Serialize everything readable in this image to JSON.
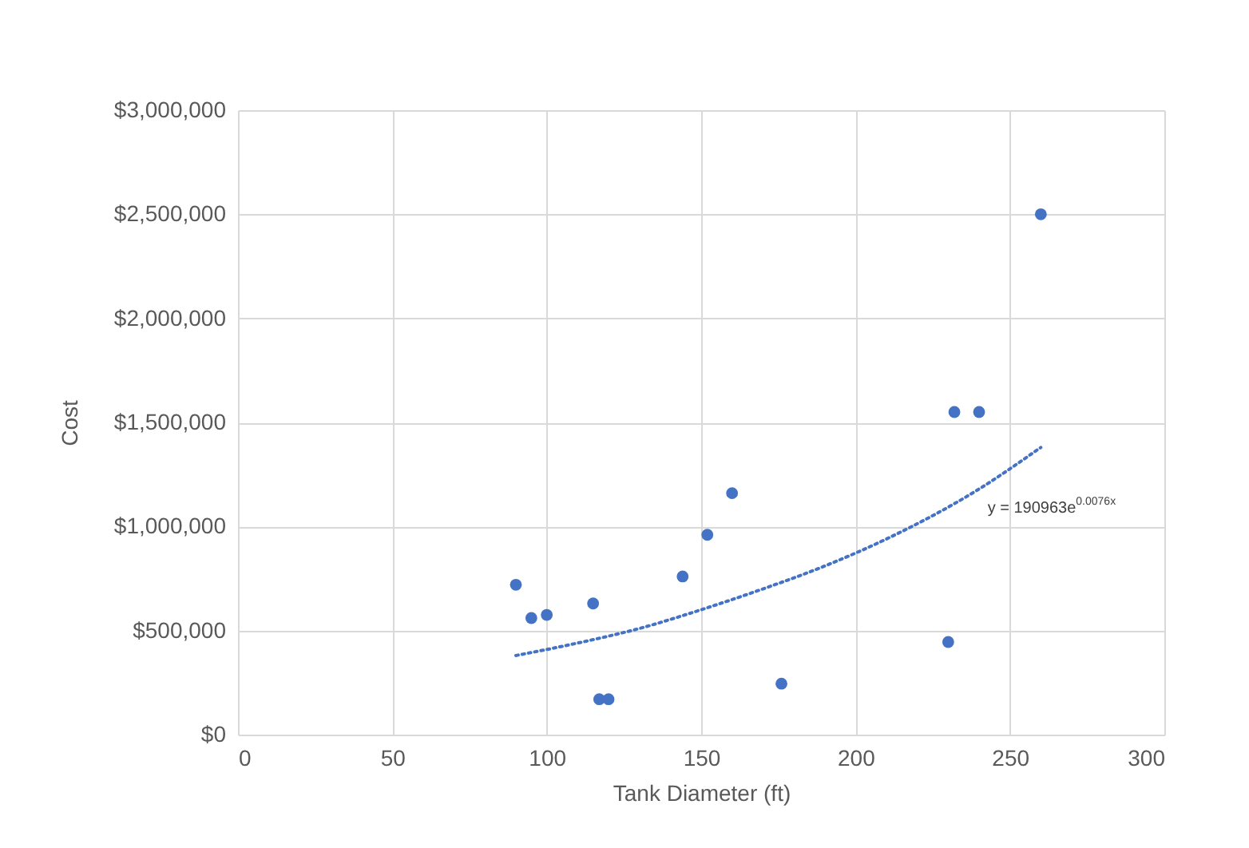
{
  "chart_data": {
    "type": "scatter",
    "xlabel": "Tank Diameter (ft)",
    "ylabel": "Cost",
    "xlim": [
      0,
      300
    ],
    "xticks": [
      0,
      50,
      100,
      150,
      200,
      250,
      300
    ],
    "ylim": [
      0,
      3000000
    ],
    "yticks": [
      {
        "value": 0,
        "label": "$0"
      },
      {
        "value": 500000,
        "label": "$500,000"
      },
      {
        "value": 1000000,
        "label": "$1,000,000"
      },
      {
        "value": 1500000,
        "label": "$1,500,000"
      },
      {
        "value": 2000000,
        "label": "$2,000,000"
      },
      {
        "value": 2500000,
        "label": "$2,500,000"
      },
      {
        "value": 3000000,
        "label": "$3,000,000"
      }
    ],
    "grid": true,
    "marker": "circle",
    "series": [
      {
        "color": "#4472c4",
        "x": [
          90,
          95,
          100,
          115,
          117,
          120,
          144,
          152,
          160,
          176,
          230,
          232,
          240,
          260
        ],
        "values": [
          720000,
          560000,
          575000,
          630000,
          170000,
          170000,
          760000,
          960000,
          1160000,
          245000,
          445000,
          1550000,
          1550000,
          2500000
        ]
      },
      {
        "type": "line",
        "color": "#4472c4",
        "line_style": "dotted",
        "marker": "none",
        "x": [
          90,
          110,
          130,
          150,
          170,
          190,
          210,
          240,
          260
        ],
        "values": [
          380000,
          440000,
          510000,
          600000,
          700000,
          810000,
          940000,
          1180000,
          1380000
        ]
      }
    ],
    "annotations": [
      "y = 190963e$^{0.0076x}$"
    ]
  }
}
